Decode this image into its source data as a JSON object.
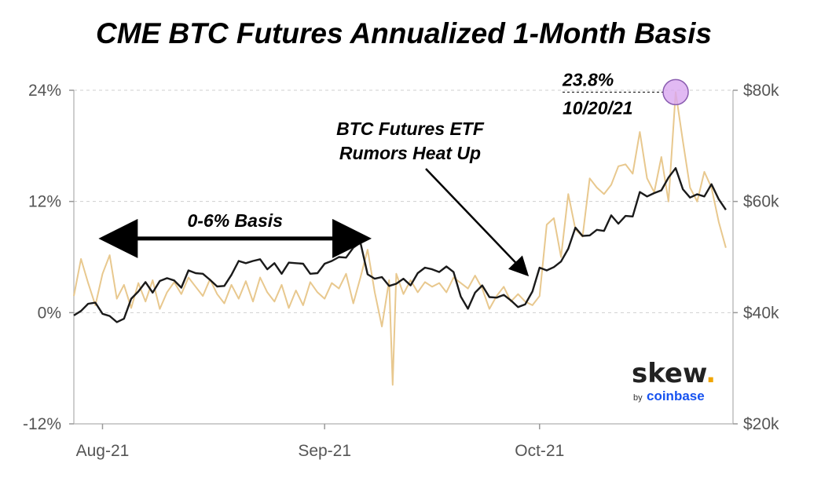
{
  "chart_data": {
    "type": "line",
    "title": "CME BTC Futures Annualized 1-Month Basis",
    "x_range": [
      "2021-07-28",
      "2021-10-28"
    ],
    "x_ticks": [
      {
        "label": "Aug-21",
        "date": "2021-08-01"
      },
      {
        "label": "Sep-21",
        "date": "2021-09-01"
      },
      {
        "label": "Oct-21",
        "date": "2021-10-01"
      }
    ],
    "y_left": {
      "ylim": [
        -12,
        24
      ],
      "ticks": [
        {
          "v": 24,
          "label": "24%"
        },
        {
          "v": 12,
          "label": "12%"
        },
        {
          "v": 0,
          "label": "0%"
        },
        {
          "v": -12,
          "label": "-12%"
        }
      ]
    },
    "y_right": {
      "ylim": [
        20000,
        80000
      ],
      "ticks": [
        {
          "v": 80000,
          "label": "$80k"
        },
        {
          "v": 60000,
          "label": "$60k"
        },
        {
          "v": 40000,
          "label": "$40k"
        },
        {
          "v": 20000,
          "label": "$20k"
        }
      ]
    },
    "grid": "horizontal dashed",
    "series": [
      {
        "axis": "left",
        "color": "#e8c88e",
        "points": [
          [
            "2021-07-28",
            1.8
          ],
          [
            "2021-07-29",
            5.8
          ],
          [
            "2021-07-30",
            3.2
          ],
          [
            "2021-07-31",
            0.8
          ],
          [
            "2021-08-01",
            4.2
          ],
          [
            "2021-08-02",
            6.2
          ],
          [
            "2021-08-03",
            1.5
          ],
          [
            "2021-08-04",
            3.0
          ],
          [
            "2021-08-05",
            0.5
          ],
          [
            "2021-08-06",
            3.2
          ],
          [
            "2021-08-07",
            1.2
          ],
          [
            "2021-08-08",
            3.5
          ],
          [
            "2021-08-09",
            0.4
          ],
          [
            "2021-08-10",
            2.2
          ],
          [
            "2021-08-11",
            3.3
          ],
          [
            "2021-08-12",
            2.0
          ],
          [
            "2021-08-13",
            3.8
          ],
          [
            "2021-08-14",
            2.8
          ],
          [
            "2021-08-15",
            1.8
          ],
          [
            "2021-08-16",
            3.6
          ],
          [
            "2021-08-17",
            2.0
          ],
          [
            "2021-08-18",
            1.0
          ],
          [
            "2021-08-19",
            3.0
          ],
          [
            "2021-08-20",
            1.5
          ],
          [
            "2021-08-21",
            3.4
          ],
          [
            "2021-08-22",
            1.2
          ],
          [
            "2021-08-23",
            3.8
          ],
          [
            "2021-08-24",
            2.2
          ],
          [
            "2021-08-25",
            1.2
          ],
          [
            "2021-08-26",
            3.0
          ],
          [
            "2021-08-27",
            0.5
          ],
          [
            "2021-08-28",
            2.4
          ],
          [
            "2021-08-29",
            0.8
          ],
          [
            "2021-08-30",
            3.3
          ],
          [
            "2021-08-31",
            2.2
          ],
          [
            "2021-09-01",
            1.5
          ],
          [
            "2021-09-02",
            3.2
          ],
          [
            "2021-09-03",
            2.6
          ],
          [
            "2021-09-04",
            4.2
          ],
          [
            "2021-09-05",
            1.0
          ],
          [
            "2021-09-06",
            3.8
          ],
          [
            "2021-09-07",
            6.8
          ],
          [
            "2021-09-08",
            2.2
          ],
          [
            "2021-09-09",
            -1.5
          ],
          [
            "2021-09-10",
            3.5
          ],
          [
            "2021-09-10T12:00",
            -7.8
          ],
          [
            "2021-09-11",
            4.2
          ],
          [
            "2021-09-12",
            2.0
          ],
          [
            "2021-09-13",
            3.5
          ],
          [
            "2021-09-14",
            2.2
          ],
          [
            "2021-09-15",
            3.3
          ],
          [
            "2021-09-16",
            2.8
          ],
          [
            "2021-09-17",
            3.2
          ],
          [
            "2021-09-18",
            2.2
          ],
          [
            "2021-09-19",
            3.8
          ],
          [
            "2021-09-20",
            3.2
          ],
          [
            "2021-09-21",
            2.6
          ],
          [
            "2021-09-22",
            4.0
          ],
          [
            "2021-09-23",
            2.6
          ],
          [
            "2021-09-24",
            0.4
          ],
          [
            "2021-09-25",
            1.8
          ],
          [
            "2021-09-26",
            2.8
          ],
          [
            "2021-09-27",
            1.2
          ],
          [
            "2021-09-28",
            2.0
          ],
          [
            "2021-09-29",
            1.2
          ],
          [
            "2021-09-30",
            0.8
          ],
          [
            "2021-10-01",
            1.8
          ],
          [
            "2021-10-02",
            9.5
          ],
          [
            "2021-10-03",
            10.2
          ],
          [
            "2021-10-04",
            6.0
          ],
          [
            "2021-10-05",
            12.8
          ],
          [
            "2021-10-06",
            9.0
          ],
          [
            "2021-10-07",
            8.2
          ],
          [
            "2021-10-08",
            14.5
          ],
          [
            "2021-10-09",
            13.5
          ],
          [
            "2021-10-10",
            12.8
          ],
          [
            "2021-10-11",
            13.8
          ],
          [
            "2021-10-12",
            15.8
          ],
          [
            "2021-10-13",
            16.0
          ],
          [
            "2021-10-14",
            15.0
          ],
          [
            "2021-10-15",
            19.5
          ],
          [
            "2021-10-16",
            14.5
          ],
          [
            "2021-10-17",
            13.0
          ],
          [
            "2021-10-18",
            16.8
          ],
          [
            "2021-10-19",
            12.0
          ],
          [
            "2021-10-20",
            23.8
          ],
          [
            "2021-10-21",
            18.5
          ],
          [
            "2021-10-22",
            13.5
          ],
          [
            "2021-10-23",
            12.0
          ],
          [
            "2021-10-24",
            15.2
          ],
          [
            "2021-10-25",
            13.5
          ],
          [
            "2021-10-26",
            9.8
          ],
          [
            "2021-10-27",
            7.0
          ]
        ]
      },
      {
        "axis": "right",
        "color": "#1a1a1a",
        "points": [
          [
            "2021-07-28",
            39500
          ],
          [
            "2021-07-29",
            40300
          ],
          [
            "2021-07-30",
            41600
          ],
          [
            "2021-07-31",
            41800
          ],
          [
            "2021-08-01",
            39800
          ],
          [
            "2021-08-02",
            39400
          ],
          [
            "2021-08-03",
            38300
          ],
          [
            "2021-08-04",
            38900
          ],
          [
            "2021-08-05",
            42500
          ],
          [
            "2021-08-06",
            43800
          ],
          [
            "2021-08-07",
            45500
          ],
          [
            "2021-08-08",
            43600
          ],
          [
            "2021-08-09",
            45700
          ],
          [
            "2021-08-10",
            46200
          ],
          [
            "2021-08-11",
            45800
          ],
          [
            "2021-08-12",
            44500
          ],
          [
            "2021-08-13",
            47600
          ],
          [
            "2021-08-14",
            47100
          ],
          [
            "2021-08-15",
            47000
          ],
          [
            "2021-08-16",
            45900
          ],
          [
            "2021-08-17",
            44700
          ],
          [
            "2021-08-18",
            44800
          ],
          [
            "2021-08-19",
            46800
          ],
          [
            "2021-08-20",
            49300
          ],
          [
            "2021-08-21",
            48900
          ],
          [
            "2021-08-22",
            49300
          ],
          [
            "2021-08-23",
            49600
          ],
          [
            "2021-08-24",
            47800
          ],
          [
            "2021-08-25",
            48900
          ],
          [
            "2021-08-26",
            47000
          ],
          [
            "2021-08-27",
            49000
          ],
          [
            "2021-08-28",
            48900
          ],
          [
            "2021-08-29",
            48800
          ],
          [
            "2021-08-30",
            47000
          ],
          [
            "2021-08-31",
            47100
          ],
          [
            "2021-09-01",
            48800
          ],
          [
            "2021-09-02",
            49300
          ],
          [
            "2021-09-03",
            50000
          ],
          [
            "2021-09-04",
            49900
          ],
          [
            "2021-09-05",
            51700
          ],
          [
            "2021-09-06",
            52600
          ],
          [
            "2021-09-07",
            46900
          ],
          [
            "2021-09-08",
            46100
          ],
          [
            "2021-09-09",
            46400
          ],
          [
            "2021-09-10",
            44800
          ],
          [
            "2021-09-11",
            45200
          ],
          [
            "2021-09-12",
            46100
          ],
          [
            "2021-09-13",
            44900
          ],
          [
            "2021-09-14",
            47100
          ],
          [
            "2021-09-15",
            48100
          ],
          [
            "2021-09-16",
            47800
          ],
          [
            "2021-09-17",
            47300
          ],
          [
            "2021-09-18",
            48300
          ],
          [
            "2021-09-19",
            47300
          ],
          [
            "2021-09-20",
            42900
          ],
          [
            "2021-09-21",
            40700
          ],
          [
            "2021-09-22",
            43600
          ],
          [
            "2021-09-23",
            44900
          ],
          [
            "2021-09-24",
            42800
          ],
          [
            "2021-09-25",
            42700
          ],
          [
            "2021-09-26",
            43200
          ],
          [
            "2021-09-27",
            42200
          ],
          [
            "2021-09-28",
            41000
          ],
          [
            "2021-09-29",
            41500
          ],
          [
            "2021-09-30",
            43800
          ],
          [
            "2021-10-01",
            48100
          ],
          [
            "2021-10-02",
            47600
          ],
          [
            "2021-10-03",
            48200
          ],
          [
            "2021-10-04",
            49200
          ],
          [
            "2021-10-05",
            51500
          ],
          [
            "2021-10-06",
            55300
          ],
          [
            "2021-10-07",
            53800
          ],
          [
            "2021-10-08",
            53900
          ],
          [
            "2021-10-09",
            54900
          ],
          [
            "2021-10-10",
            54700
          ],
          [
            "2021-10-11",
            57500
          ],
          [
            "2021-10-12",
            56000
          ],
          [
            "2021-10-13",
            57400
          ],
          [
            "2021-10-14",
            57300
          ],
          [
            "2021-10-15",
            61700
          ],
          [
            "2021-10-16",
            60900
          ],
          [
            "2021-10-17",
            61500
          ],
          [
            "2021-10-18",
            62000
          ],
          [
            "2021-10-19",
            64300
          ],
          [
            "2021-10-20",
            66000
          ],
          [
            "2021-10-21",
            62200
          ],
          [
            "2021-10-22",
            60700
          ],
          [
            "2021-10-23",
            61300
          ],
          [
            "2021-10-24",
            60900
          ],
          [
            "2021-10-25",
            63100
          ],
          [
            "2021-10-26",
            60400
          ],
          [
            "2021-10-27",
            58500
          ]
        ]
      }
    ],
    "annotations": [
      {
        "text": "0-6% Basis",
        "range": [
          "2021-07-31",
          "2021-09-08"
        ],
        "y": 8
      },
      {
        "lines": [
          "BTC Futures ETF",
          "Rumors Heat Up"
        ],
        "arrow_to": [
          "2021-09-30",
          3.2
        ]
      },
      {
        "lines": [
          "23.8%",
          "10/20/21"
        ],
        "point": [
          "2021-10-20",
          23.8
        ]
      }
    ]
  },
  "logo": {
    "main": "skew",
    "dot": ".",
    "by": "by",
    "brand": "coinbase"
  }
}
